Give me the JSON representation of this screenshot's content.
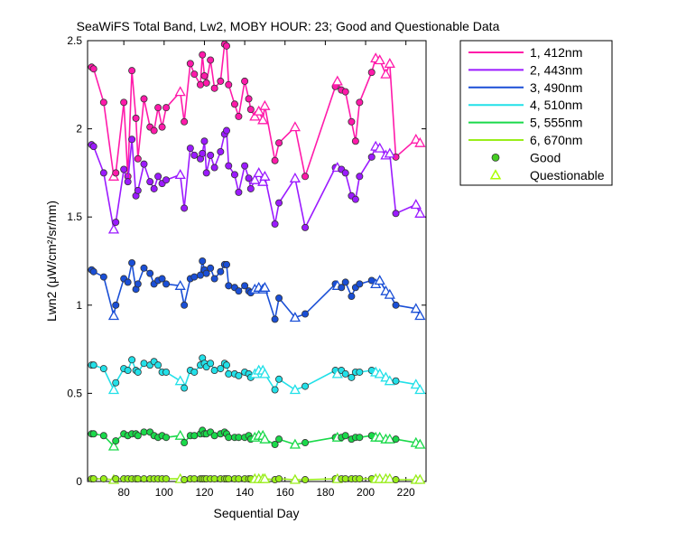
{
  "chart_data": {
    "type": "line",
    "title": "SeaWiFS Total Band, Lw2, MOBY HOUR: 23;  Good and Questionable Data",
    "xlabel": "Sequential Day",
    "ylabel": "Lwn2 (μW/cm²/sr/nm)",
    "xlim": [
      62,
      230
    ],
    "ylim": [
      0,
      2.5
    ],
    "xticks": [
      80,
      100,
      120,
      140,
      160,
      180,
      200,
      220
    ],
    "yticks": [
      0,
      0.5,
      1,
      1.5,
      2,
      2.5
    ],
    "legend_position": "outside-right",
    "grid": false,
    "x": [
      64,
      65,
      70,
      75,
      76,
      80,
      82,
      84,
      86,
      87,
      90,
      93,
      95,
      97,
      99,
      101,
      108,
      110,
      113,
      115,
      118,
      119,
      120,
      121,
      123,
      125,
      128,
      130,
      131,
      132,
      135,
      137,
      140,
      142,
      143,
      145,
      147,
      149,
      150,
      155,
      157,
      165,
      170,
      185,
      186,
      188,
      190,
      193,
      195,
      197,
      203,
      205,
      207,
      210,
      212,
      215,
      225,
      227
    ],
    "good": [
      1,
      1,
      1,
      0,
      1,
      1,
      1,
      1,
      1,
      1,
      1,
      1,
      1,
      1,
      1,
      1,
      0,
      1,
      1,
      1,
      1,
      1,
      1,
      1,
      1,
      1,
      1,
      1,
      1,
      1,
      1,
      1,
      1,
      1,
      1,
      0,
      0,
      0,
      0,
      1,
      1,
      0,
      1,
      1,
      0,
      1,
      1,
      1,
      1,
      1,
      1,
      0,
      0,
      0,
      0,
      1,
      0,
      0
    ],
    "series": [
      {
        "name": "1, 412nm",
        "color": "#ff1aaa",
        "values": [
          2.35,
          2.34,
          2.15,
          1.73,
          1.75,
          2.15,
          1.73,
          2.33,
          2.06,
          1.83,
          2.17,
          2.01,
          1.99,
          2.12,
          2.01,
          2.12,
          2.21,
          2.04,
          2.37,
          2.31,
          2.25,
          2.42,
          2.3,
          2.26,
          2.39,
          2.23,
          2.27,
          2.48,
          2.47,
          2.25,
          2.14,
          2.07,
          2.27,
          2.17,
          2.11,
          2.07,
          2.1,
          2.05,
          2.13,
          1.82,
          1.92,
          2.01,
          1.73,
          2.24,
          2.27,
          2.22,
          2.21,
          2.04,
          1.93,
          2.15,
          2.32,
          2.4,
          2.39,
          2.31,
          2.37,
          1.84,
          1.94,
          1.92
        ]
      },
      {
        "name": "2, 443nm",
        "color": "#9b1aff",
        "values": [
          1.91,
          1.9,
          1.75,
          1.43,
          1.47,
          1.77,
          1.7,
          1.94,
          1.62,
          1.65,
          1.8,
          1.7,
          1.66,
          1.73,
          1.69,
          1.71,
          1.74,
          1.55,
          1.89,
          1.85,
          1.83,
          1.86,
          1.93,
          1.75,
          1.85,
          1.78,
          1.87,
          1.97,
          1.99,
          1.79,
          1.74,
          1.64,
          1.79,
          1.72,
          1.66,
          1.71,
          1.75,
          1.7,
          1.73,
          1.46,
          1.58,
          1.72,
          1.44,
          1.78,
          1.78,
          1.77,
          1.75,
          1.62,
          1.6,
          1.73,
          1.84,
          1.9,
          1.89,
          1.85,
          1.86,
          1.52,
          1.57,
          1.52
        ]
      },
      {
        "name": "3, 490nm",
        "color": "#1a4fd6",
        "values": [
          1.2,
          1.19,
          1.16,
          0.94,
          1.0,
          1.15,
          1.13,
          1.24,
          1.09,
          1.12,
          1.21,
          1.18,
          1.12,
          1.14,
          1.15,
          1.12,
          1.11,
          1.0,
          1.15,
          1.16,
          1.17,
          1.25,
          1.2,
          1.18,
          1.21,
          1.15,
          1.19,
          1.23,
          1.23,
          1.11,
          1.1,
          1.08,
          1.11,
          1.08,
          1.07,
          1.09,
          1.1,
          1.09,
          1.1,
          0.92,
          1.04,
          0.93,
          0.95,
          1.12,
          1.11,
          1.1,
          1.13,
          1.05,
          1.1,
          1.12,
          1.14,
          1.12,
          1.14,
          1.08,
          1.06,
          1.0,
          0.98,
          0.94
        ]
      },
      {
        "name": "4, 510nm",
        "color": "#22e0e8",
        "values": [
          0.66,
          0.66,
          0.64,
          0.52,
          0.56,
          0.64,
          0.63,
          0.69,
          0.63,
          0.62,
          0.67,
          0.66,
          0.68,
          0.66,
          0.62,
          0.62,
          0.57,
          0.53,
          0.63,
          0.62,
          0.66,
          0.7,
          0.67,
          0.65,
          0.67,
          0.63,
          0.64,
          0.67,
          0.66,
          0.61,
          0.61,
          0.6,
          0.62,
          0.61,
          0.59,
          0.61,
          0.63,
          0.63,
          0.61,
          0.52,
          0.58,
          0.52,
          0.54,
          0.63,
          0.61,
          0.63,
          0.61,
          0.59,
          0.62,
          0.62,
          0.63,
          0.62,
          0.61,
          0.59,
          0.57,
          0.57,
          0.55,
          0.52
        ]
      },
      {
        "name": "5, 555nm",
        "color": "#1ad94a",
        "values": [
          0.27,
          0.27,
          0.26,
          0.2,
          0.23,
          0.27,
          0.26,
          0.27,
          0.27,
          0.26,
          0.28,
          0.28,
          0.26,
          0.25,
          0.26,
          0.25,
          0.26,
          0.22,
          0.26,
          0.26,
          0.27,
          0.29,
          0.27,
          0.27,
          0.28,
          0.26,
          0.27,
          0.28,
          0.27,
          0.25,
          0.25,
          0.25,
          0.25,
          0.26,
          0.24,
          0.25,
          0.26,
          0.26,
          0.24,
          0.21,
          0.24,
          0.21,
          0.22,
          0.25,
          0.25,
          0.25,
          0.26,
          0.24,
          0.25,
          0.25,
          0.26,
          0.25,
          0.25,
          0.24,
          0.24,
          0.24,
          0.22,
          0.21
        ]
      },
      {
        "name": "6, 670nm",
        "color": "#99ee1a",
        "values": [
          0.015,
          0.015,
          0.015,
          0.01,
          0.015,
          0.015,
          0.015,
          0.015,
          0.015,
          0.015,
          0.015,
          0.015,
          0.015,
          0.015,
          0.015,
          0.015,
          0.015,
          0.01,
          0.015,
          0.015,
          0.015,
          0.015,
          0.015,
          0.015,
          0.015,
          0.015,
          0.015,
          0.015,
          0.015,
          0.015,
          0.015,
          0.015,
          0.015,
          0.015,
          0.015,
          0.015,
          0.015,
          0.015,
          0.015,
          0.01,
          0.015,
          0.01,
          0.01,
          0.015,
          0.015,
          0.015,
          0.015,
          0.015,
          0.015,
          0.015,
          0.015,
          0.015,
          0.015,
          0.015,
          0.015,
          0.01,
          0.01,
          0.01
        ]
      }
    ],
    "marker_legend": [
      {
        "name": "Good",
        "marker": "circle",
        "color": "#44cc22"
      },
      {
        "name": "Questionable",
        "marker": "triangle",
        "color": "#aaff00"
      }
    ]
  }
}
